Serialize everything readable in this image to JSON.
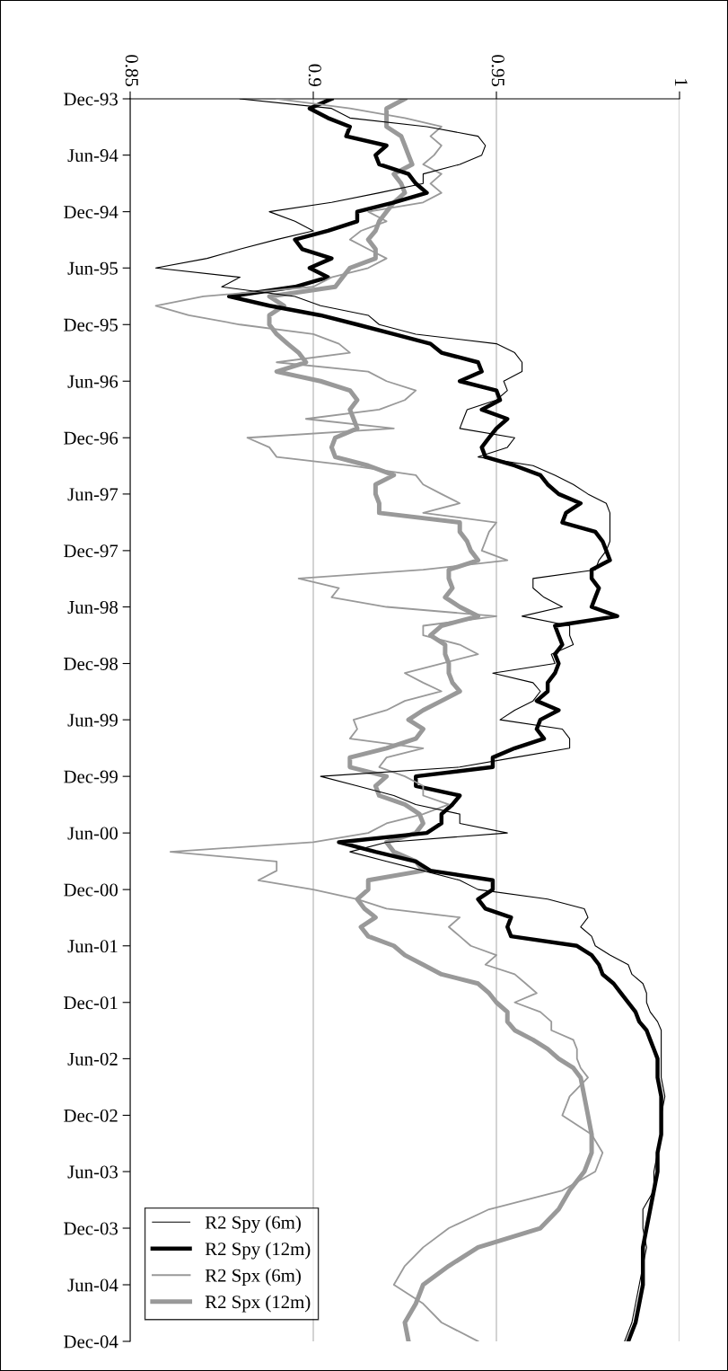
{
  "chart_data": {
    "type": "line",
    "x": [
      "1993-12",
      "1994-01",
      "1994-02",
      "1994-03",
      "1994-04",
      "1994-05",
      "1994-06",
      "1994-07",
      "1994-08",
      "1994-09",
      "1994-10",
      "1994-11",
      "1994-12",
      "1995-01",
      "1995-02",
      "1995-03",
      "1995-04",
      "1995-05",
      "1995-06",
      "1995-07",
      "1995-08",
      "1995-09",
      "1995-10",
      "1995-11",
      "1995-12",
      "1996-01",
      "1996-02",
      "1996-03",
      "1996-04",
      "1996-05",
      "1996-06",
      "1996-07",
      "1996-08",
      "1996-09",
      "1996-10",
      "1996-11",
      "1996-12",
      "1997-01",
      "1997-02",
      "1997-03",
      "1997-04",
      "1997-05",
      "1997-06",
      "1997-07",
      "1997-08",
      "1997-09",
      "1997-10",
      "1997-11",
      "1997-12",
      "1998-01",
      "1998-02",
      "1998-03",
      "1998-04",
      "1998-05",
      "1998-06",
      "1998-07",
      "1998-08",
      "1998-09",
      "1998-10",
      "1998-11",
      "1998-12",
      "1999-01",
      "1999-02",
      "1999-03",
      "1999-04",
      "1999-05",
      "1999-06",
      "1999-07",
      "1999-08",
      "1999-09",
      "1999-10",
      "1999-11",
      "1999-12",
      "2000-01",
      "2000-02",
      "2000-03",
      "2000-04",
      "2000-05",
      "2000-06",
      "2000-07",
      "2000-08",
      "2000-09",
      "2000-10",
      "2000-11",
      "2000-12",
      "2001-01",
      "2001-02",
      "2001-03",
      "2001-04",
      "2001-05",
      "2001-06",
      "2001-07",
      "2001-08",
      "2001-09",
      "2001-10",
      "2001-11",
      "2001-12",
      "2002-01",
      "2002-02",
      "2002-03",
      "2002-04",
      "2002-05",
      "2002-06",
      "2002-07",
      "2002-08",
      "2002-10",
      "2002-12",
      "2003-02",
      "2003-04",
      "2003-06",
      "2003-08",
      "2003-10",
      "2003-12",
      "2004-02",
      "2004-04",
      "2004-06",
      "2004-08",
      "2004-10",
      "2004-12"
    ],
    "series": [
      {
        "name": "R2 Spy (6m)",
        "color": "#000000",
        "values": [
          0.88,
          0.905,
          0.91,
          0.931,
          0.945,
          0.947,
          0.946,
          0.94,
          0.93,
          0.93,
          0.918,
          0.905,
          0.888,
          0.895,
          0.9,
          0.89,
          0.88,
          0.871,
          0.857,
          0.88,
          0.875,
          0.895,
          0.902,
          0.915,
          0.918,
          0.928,
          0.95,
          0.955,
          0.957,
          0.957,
          0.952,
          0.953,
          0.95,
          0.942,
          0.941,
          0.94,
          0.955,
          0.953,
          0.945,
          0.96,
          0.966,
          0.971,
          0.975,
          0.98,
          0.981,
          0.981,
          0.981,
          0.981,
          0.98,
          0.978,
          0.977,
          0.96,
          0.96,
          0.963,
          0.968,
          0.957,
          0.97,
          0.97,
          0.971,
          0.965,
          0.966,
          0.949,
          0.96,
          0.962,
          0.96,
          0.955,
          0.951,
          0.968,
          0.97,
          0.97,
          0.955,
          0.94,
          0.902,
          0.912,
          0.922,
          0.928,
          0.94,
          0.94,
          0.953,
          0.92,
          0.91,
          0.92,
          0.93,
          0.94,
          0.945,
          0.964,
          0.974,
          0.975,
          0.973,
          0.976,
          0.977,
          0.981,
          0.986,
          0.987,
          0.99,
          0.991,
          0.991,
          0.992,
          0.994,
          0.995,
          0.995,
          0.995,
          0.995,
          0.995,
          0.995,
          0.996,
          0.995,
          0.995,
          0.994,
          0.993,
          0.993,
          0.99,
          0.99,
          0.991,
          0.99,
          0.989,
          0.988,
          0.987,
          0.985
        ]
      },
      {
        "name": "R2 Spy (12m)",
        "color": "#000000",
        "values": [
          0.905,
          0.899,
          0.904,
          0.91,
          0.909,
          0.92,
          0.917,
          0.918,
          0.926,
          0.928,
          0.931,
          0.922,
          0.912,
          0.912,
          0.904,
          0.895,
          0.897,
          0.905,
          0.899,
          0.904,
          0.895,
          0.877,
          0.888,
          0.902,
          0.912,
          0.922,
          0.932,
          0.935,
          0.945,
          0.946,
          0.94,
          0.95,
          0.951,
          0.946,
          0.953,
          0.95,
          0.948,
          0.946,
          0.947,
          0.955,
          0.962,
          0.964,
          0.967,
          0.973,
          0.969,
          0.968,
          0.977,
          0.979,
          0.98,
          0.981,
          0.976,
          0.976,
          0.978,
          0.977,
          0.976,
          0.983,
          0.966,
          0.967,
          0.968,
          0.966,
          0.967,
          0.966,
          0.964,
          0.964,
          0.961,
          0.967,
          0.962,
          0.961,
          0.963,
          0.955,
          0.949,
          0.949,
          0.928,
          0.928,
          0.94,
          0.938,
          0.935,
          0.935,
          0.931,
          0.907,
          0.917,
          0.928,
          0.932,
          0.949,
          0.949,
          0.945,
          0.947,
          0.954,
          0.953,
          0.954,
          0.972,
          0.976,
          0.978,
          0.979,
          0.982,
          0.984,
          0.986,
          0.988,
          0.989,
          0.991,
          0.992,
          0.993,
          0.994,
          0.994,
          0.994,
          0.995,
          0.995,
          0.995,
          0.994,
          0.994,
          0.993,
          0.992,
          0.991,
          0.99,
          0.99,
          0.99,
          0.989,
          0.988,
          0.986
        ]
      },
      {
        "name": "R2 Spx (6m)",
        "color": "#999999",
        "values": [
          0.89,
          0.91,
          0.925,
          0.935,
          0.932,
          0.935,
          0.933,
          0.93,
          0.935,
          0.932,
          0.935,
          0.93,
          0.915,
          0.92,
          0.913,
          0.91,
          0.915,
          0.92,
          0.915,
          0.905,
          0.9,
          0.87,
          0.857,
          0.866,
          0.88,
          0.9,
          0.907,
          0.91,
          0.89,
          0.915,
          0.92,
          0.928,
          0.925,
          0.918,
          0.898,
          0.922,
          0.882,
          0.888,
          0.89,
          0.91,
          0.928,
          0.93,
          0.935,
          0.94,
          0.93,
          0.95,
          0.948,
          0.947,
          0.946,
          0.953,
          0.93,
          0.896,
          0.907,
          0.905,
          0.92,
          0.95,
          0.93,
          0.93,
          0.94,
          0.945,
          0.935,
          0.925,
          0.93,
          0.935,
          0.925,
          0.92,
          0.911,
          0.912,
          0.91,
          0.93,
          0.92,
          0.918,
          0.925,
          0.93,
          0.93,
          0.937,
          0.93,
          0.92,
          0.915,
          0.9,
          0.861,
          0.89,
          0.89,
          0.885,
          0.9,
          0.912,
          0.92,
          0.94,
          0.937,
          0.94,
          0.943,
          0.95,
          0.947,
          0.955,
          0.958,
          0.961,
          0.955,
          0.962,
          0.965,
          0.965,
          0.971,
          0.972,
          0.972,
          0.973,
          0.975,
          0.97,
          0.968,
          0.976,
          0.979,
          0.977,
          0.968,
          0.948,
          0.937,
          0.93,
          0.925,
          0.922,
          0.93,
          0.935,
          0.945
        ]
      },
      {
        "name": "R2 Spx (12m)",
        "color": "#999999",
        "values": [
          0.925,
          0.92,
          0.92,
          0.92,
          0.924,
          0.925,
          0.926,
          0.927,
          0.922,
          0.924,
          0.925,
          0.922,
          0.92,
          0.918,
          0.917,
          0.915,
          0.917,
          0.917,
          0.91,
          0.908,
          0.906,
          0.888,
          0.892,
          0.888,
          0.888,
          0.89,
          0.893,
          0.896,
          0.898,
          0.89,
          0.902,
          0.91,
          0.912,
          0.91,
          0.911,
          0.912,
          0.906,
          0.905,
          0.906,
          0.915,
          0.922,
          0.917,
          0.917,
          0.918,
          0.918,
          0.94,
          0.94,
          0.942,
          0.943,
          0.945,
          0.937,
          0.937,
          0.938,
          0.936,
          0.94,
          0.945,
          0.935,
          0.932,
          0.936,
          0.936,
          0.937,
          0.937,
          0.938,
          0.94,
          0.935,
          0.93,
          0.926,
          0.93,
          0.928,
          0.92,
          0.91,
          0.91,
          0.92,
          0.917,
          0.918,
          0.925,
          0.929,
          0.93,
          0.928,
          0.92,
          0.922,
          0.928,
          0.93,
          0.915,
          0.915,
          0.912,
          0.914,
          0.917,
          0.913,
          0.915,
          0.922,
          0.925,
          0.93,
          0.935,
          0.945,
          0.948,
          0.95,
          0.953,
          0.953,
          0.955,
          0.96,
          0.964,
          0.967,
          0.971,
          0.973,
          0.974,
          0.975,
          0.976,
          0.976,
          0.974,
          0.97,
          0.967,
          0.962,
          0.945,
          0.937,
          0.93,
          0.928,
          0.925,
          0.926
        ]
      }
    ],
    "orientation": "horizontal",
    "ylim": [
      "2004-12",
      "1993-12"
    ],
    "yticks": [
      {
        "value": "1993-12",
        "label": "Dec-93"
      },
      {
        "value": "1994-06",
        "label": "Jun-94"
      },
      {
        "value": "1994-12",
        "label": "Dec-94"
      },
      {
        "value": "1995-06",
        "label": "Jun-95"
      },
      {
        "value": "1995-12",
        "label": "Dec-95"
      },
      {
        "value": "1996-06",
        "label": "Jun-96"
      },
      {
        "value": "1996-12",
        "label": "Dec-96"
      },
      {
        "value": "1997-06",
        "label": "Jun-97"
      },
      {
        "value": "1997-12",
        "label": "Dec-97"
      },
      {
        "value": "1998-06",
        "label": "Jun-98"
      },
      {
        "value": "1998-12",
        "label": "Dec-98"
      },
      {
        "value": "1999-06",
        "label": "Jun-99"
      },
      {
        "value": "1999-12",
        "label": "Dec-99"
      },
      {
        "value": "2000-06",
        "label": "Jun-00"
      },
      {
        "value": "2000-12",
        "label": "Dec-00"
      },
      {
        "value": "2001-06",
        "label": "Jun-01"
      },
      {
        "value": "2001-12",
        "label": "Dec-01"
      },
      {
        "value": "2002-06",
        "label": "Jun-02"
      },
      {
        "value": "2002-12",
        "label": "Dec-02"
      },
      {
        "value": "2003-06",
        "label": "Jun-03"
      },
      {
        "value": "2003-12",
        "label": "Dec-03"
      },
      {
        "value": "2004-06",
        "label": "Jun-04"
      },
      {
        "value": "2004-12",
        "label": "Dec-04"
      }
    ],
    "xlim": [
      0.85,
      1
    ],
    "xticks": [
      0.85,
      0.9,
      0.95,
      1
    ],
    "grid": "x",
    "legend": "bottom left",
    "marker": "none",
    "line_style": "solid"
  }
}
